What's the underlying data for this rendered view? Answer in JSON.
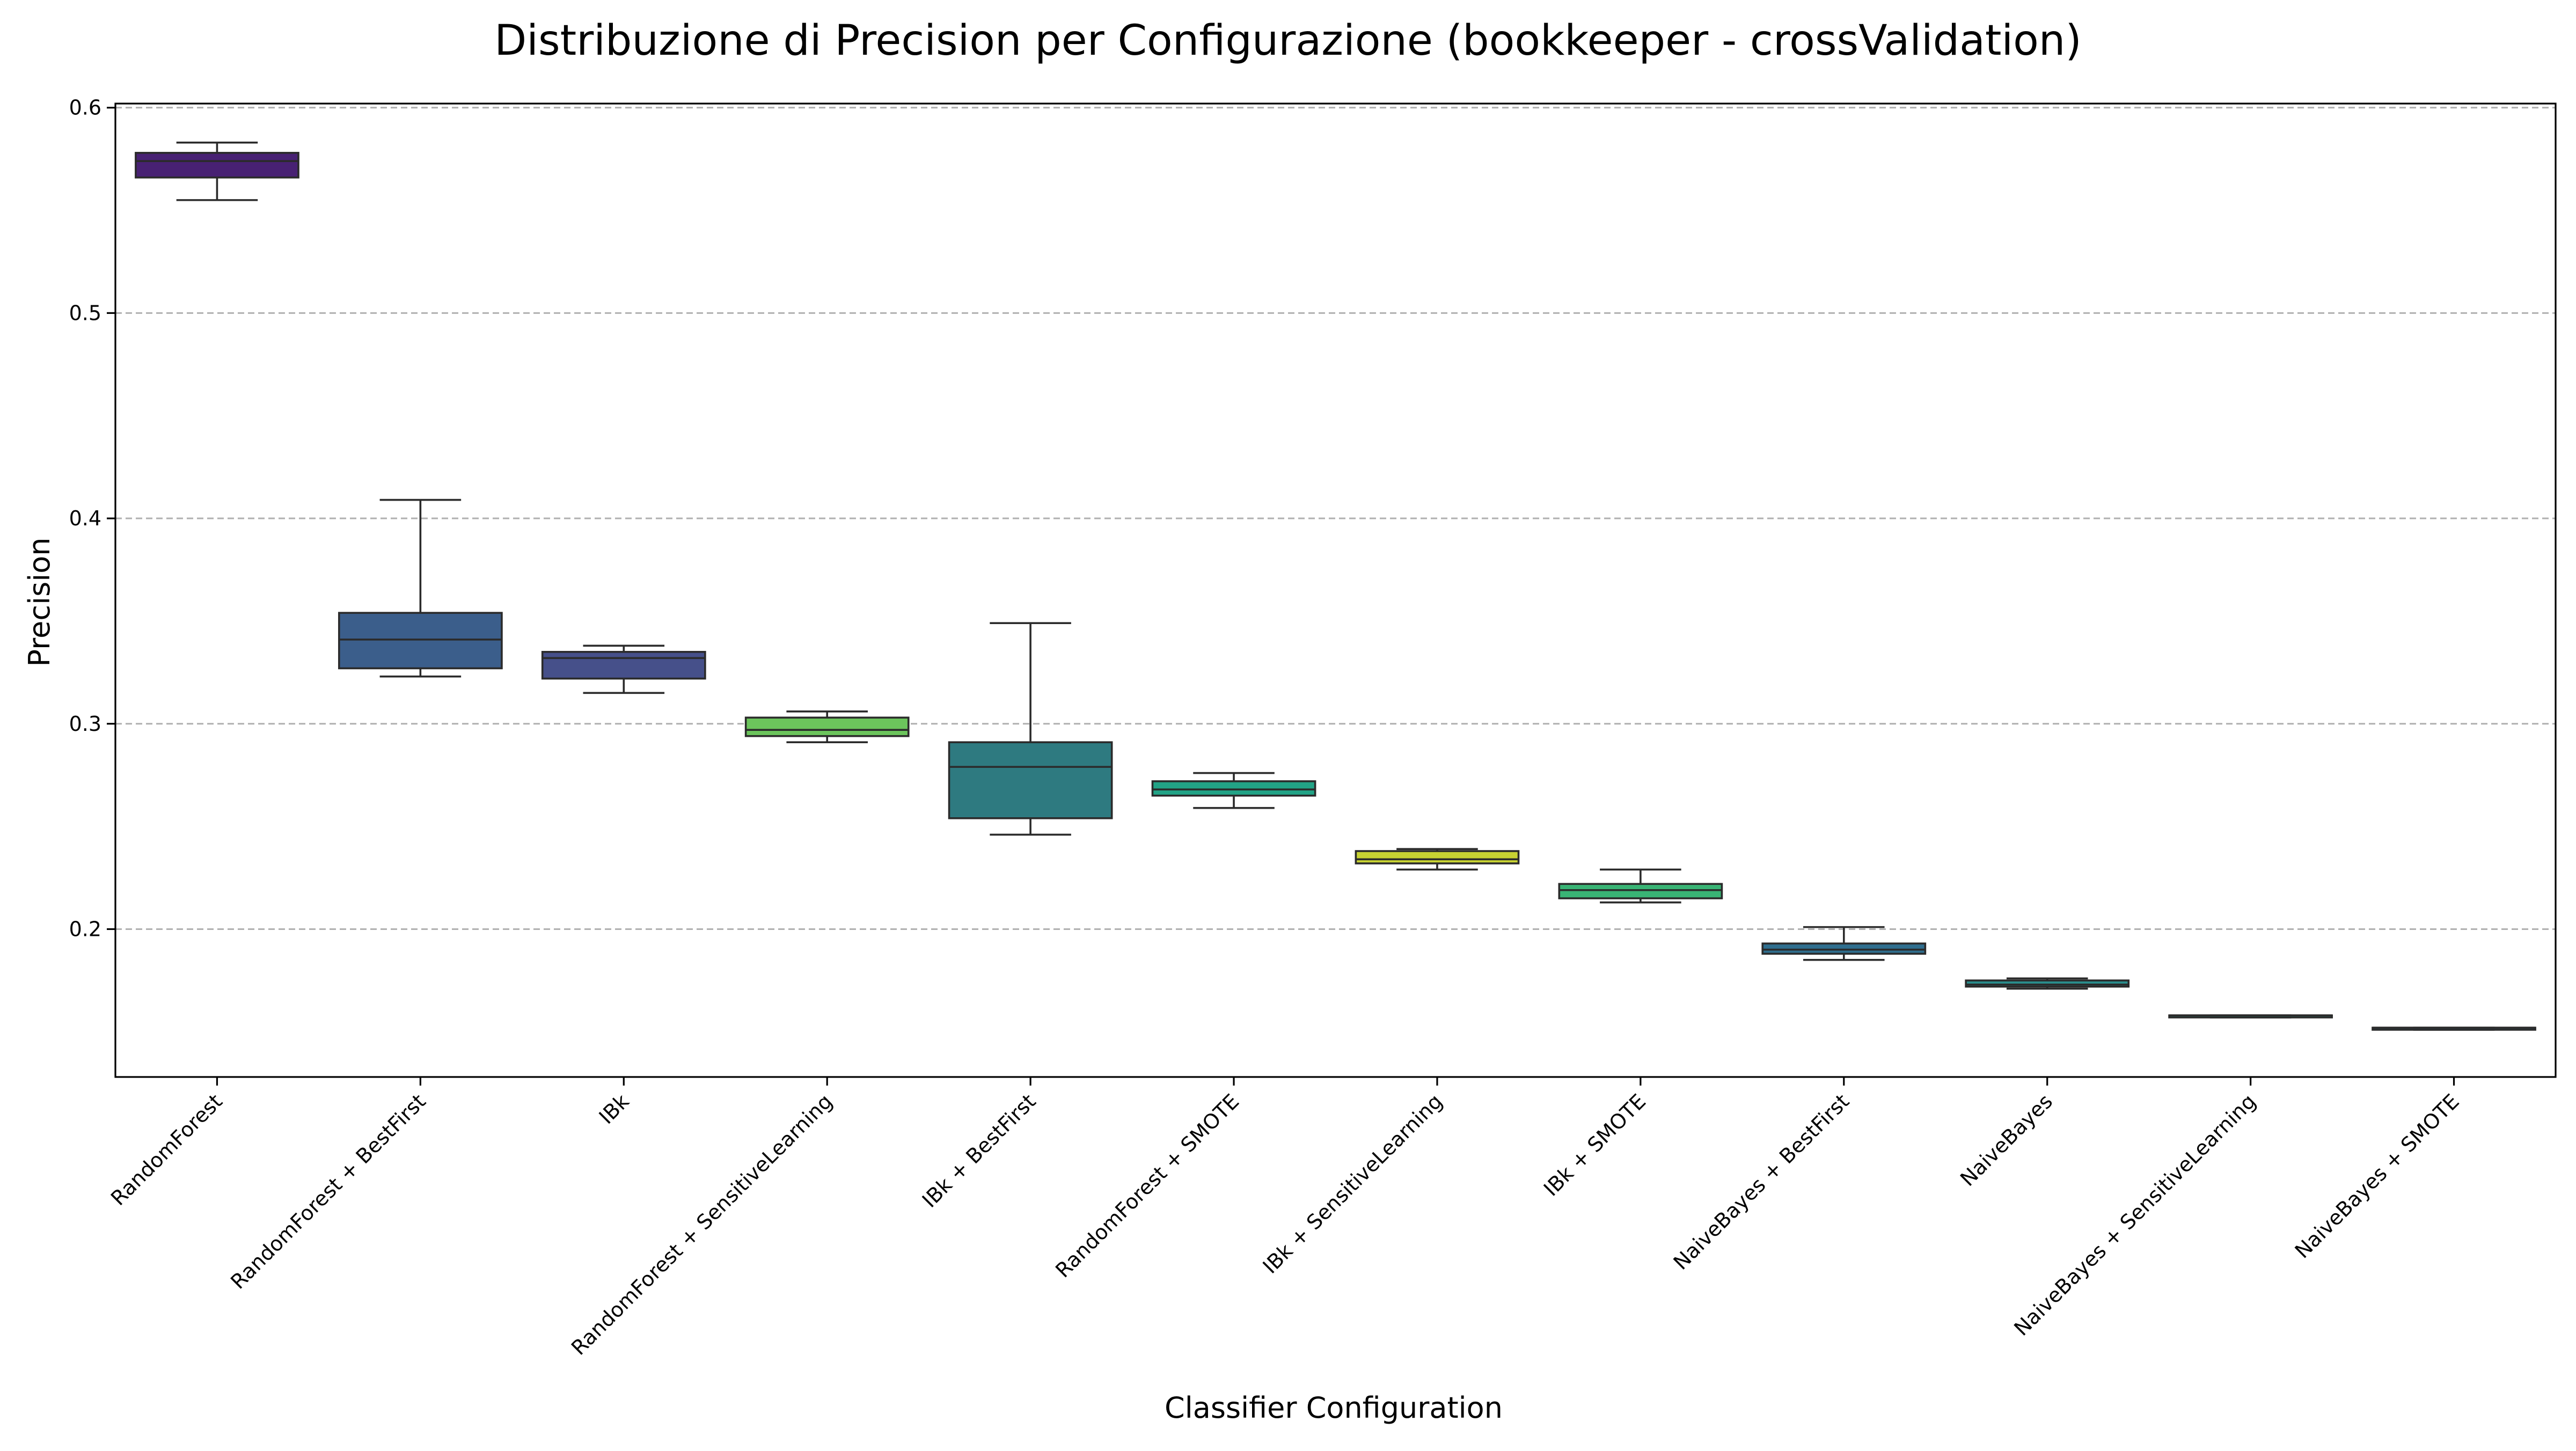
{
  "chart_data": {
    "type": "box",
    "title": "Distribuzione di Precision per Configurazione (bookkeeper - crossValidation)",
    "xlabel": "Classifier Configuration",
    "ylabel": "Precision",
    "ylim": [
      0.128,
      0.602
    ],
    "yticks": [
      0.2,
      0.3,
      0.4,
      0.5,
      0.6
    ],
    "ytick_labels": [
      "0.2",
      "0.3",
      "0.4",
      "0.5",
      "0.6"
    ],
    "grid": "y-dashed",
    "categories": [
      "RandomForest",
      "RandomForest + BestFirst",
      "IBk",
      "RandomForest + SensitiveLearning",
      "IBk + BestFirst",
      "RandomForest + SMOTE",
      "IBk + SensitiveLearning",
      "IBk + SMOTE",
      "NaiveBayes + BestFirst",
      "NaiveBayes",
      "NaiveBayes + SensitiveLearning",
      "NaiveBayes + SMOTE"
    ],
    "boxes": [
      {
        "min": 0.555,
        "q1": 0.566,
        "median": 0.574,
        "q3": 0.578,
        "max": 0.583,
        "color": "#482173"
      },
      {
        "min": 0.323,
        "q1": 0.327,
        "median": 0.341,
        "q3": 0.354,
        "max": 0.409,
        "color": "#3b5e8b"
      },
      {
        "min": 0.315,
        "q1": 0.322,
        "median": 0.332,
        "q3": 0.335,
        "max": 0.338,
        "color": "#46508a"
      },
      {
        "min": 0.291,
        "q1": 0.294,
        "median": 0.297,
        "q3": 0.303,
        "max": 0.306,
        "color": "#6cc55c"
      },
      {
        "min": 0.246,
        "q1": 0.254,
        "median": 0.279,
        "q3": 0.291,
        "max": 0.349,
        "color": "#2e7a80"
      },
      {
        "min": 0.259,
        "q1": 0.265,
        "median": 0.268,
        "q3": 0.272,
        "max": 0.276,
        "color": "#22a386"
      },
      {
        "min": 0.229,
        "q1": 0.232,
        "median": 0.234,
        "q3": 0.238,
        "max": 0.239,
        "color": "#c7d232"
      },
      {
        "min": 0.213,
        "q1": 0.215,
        "median": 0.219,
        "q3": 0.222,
        "max": 0.229,
        "color": "#39b475"
      },
      {
        "min": 0.185,
        "q1": 0.188,
        "median": 0.19,
        "q3": 0.193,
        "max": 0.201,
        "color": "#2f6e8e"
      },
      {
        "min": 0.171,
        "q1": 0.172,
        "median": 0.173,
        "q3": 0.175,
        "max": 0.176,
        "color": "#2a8c8b"
      },
      {
        "min": 0.157,
        "q1": 0.157,
        "median": 0.158,
        "q3": 0.158,
        "max": 0.158,
        "color": "#1f9c89"
      },
      {
        "min": 0.151,
        "q1": 0.151,
        "median": 0.152,
        "q3": 0.152,
        "max": 0.152,
        "color": "#2d6f8e"
      }
    ]
  }
}
